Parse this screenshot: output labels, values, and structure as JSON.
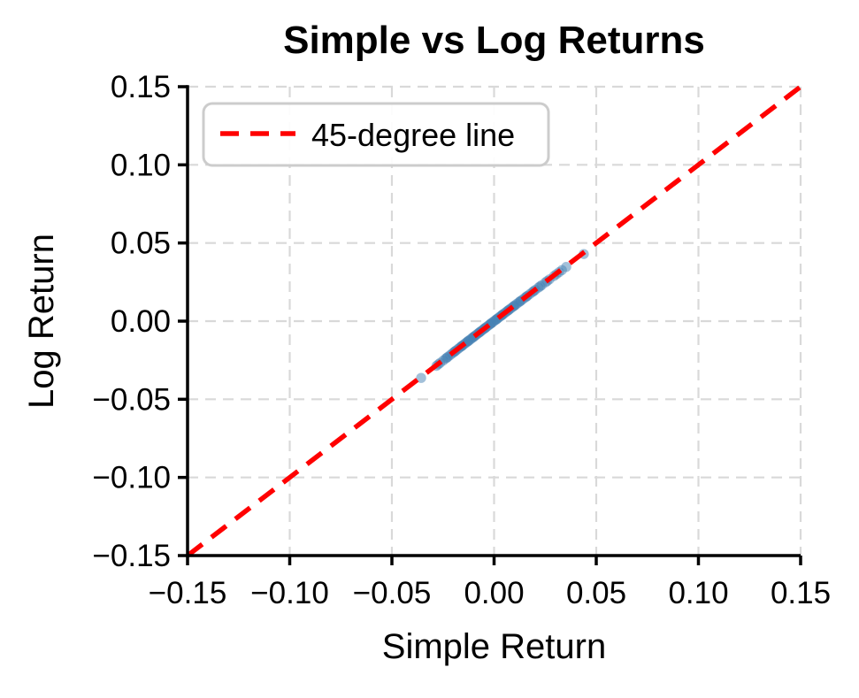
{
  "figure": {
    "background": "#ffffff",
    "text_color": "#000000"
  },
  "chart_data": {
    "type": "scatter",
    "title": "Simple vs Log Returns",
    "xlabel": "Simple Return",
    "ylabel": "Log Return",
    "xlim": [
      -0.15,
      0.15
    ],
    "ylim": [
      -0.15,
      0.15
    ],
    "xticks": [
      -0.15,
      -0.1,
      -0.05,
      0.0,
      0.05,
      0.1,
      0.15
    ],
    "yticks": [
      -0.15,
      -0.1,
      -0.05,
      0.0,
      0.05,
      0.1,
      0.15
    ],
    "xtick_labels": [
      "−0.15",
      "−0.10",
      "−0.05",
      "0.00",
      "0.05",
      "0.10",
      "0.15"
    ],
    "ytick_labels": [
      "−0.15",
      "−0.10",
      "−0.05",
      "0.00",
      "0.05",
      "0.10",
      "0.15"
    ],
    "grid": {
      "show": true,
      "color": "#d9d9d9",
      "style": "dashed"
    },
    "legend": {
      "position": "upper left",
      "entries": [
        {
          "label": "45-degree line",
          "color": "#ff0000",
          "style": "dashed"
        }
      ]
    },
    "series": {
      "scatter": {
        "color": "#4682b4",
        "alpha": 0.5,
        "marker_radius": 5.7,
        "points": [
          [
            -0.0357,
            -0.03634
          ],
          [
            -0.0282,
            -0.0286
          ],
          [
            -0.0273,
            -0.02767
          ],
          [
            -0.0264,
            -0.02675
          ],
          [
            -0.0249,
            -0.02521
          ],
          [
            -0.0237,
            -0.02398
          ],
          [
            -0.0231,
            -0.02337
          ],
          [
            -0.0226,
            -0.02286
          ],
          [
            -0.0215,
            -0.02173
          ],
          [
            -0.0205,
            -0.02071
          ],
          [
            -0.0196,
            -0.01979
          ],
          [
            -0.0192,
            -0.01938
          ],
          [
            -0.0187,
            -0.01887
          ],
          [
            -0.0178,
            -0.01796
          ],
          [
            -0.017,
            -0.01714
          ],
          [
            -0.0162,
            -0.01633
          ],
          [
            -0.0158,
            -0.01593
          ],
          [
            -0.0154,
            -0.01552
          ],
          [
            -0.0146,
            -0.01471
          ],
          [
            -0.0139,
            -0.014
          ],
          [
            -0.0131,
            -0.01319
          ],
          [
            -0.0127,
            -0.01278
          ],
          [
            -0.0124,
            -0.01248
          ],
          [
            -0.0117,
            -0.01177
          ],
          [
            -0.011,
            -0.01106
          ],
          [
            -0.0103,
            -0.01035
          ],
          [
            -0.01,
            -0.01005
          ],
          [
            -0.0096,
            -0.00965
          ],
          [
            -0.0089,
            -0.00894
          ],
          [
            -0.0082,
            -0.00823
          ],
          [
            -0.0075,
            -0.00753
          ],
          [
            -0.0071,
            -0.00713
          ],
          [
            -0.0068,
            -0.00682
          ],
          [
            -0.0061,
            -0.00612
          ],
          [
            -0.0054,
            -0.00541
          ],
          [
            -0.0047,
            -0.00471
          ],
          [
            -0.0044,
            -0.00441
          ],
          [
            -0.004,
            -0.00401
          ],
          [
            -0.0033,
            -0.00331
          ],
          [
            -0.0026,
            -0.0026
          ],
          [
            -0.0019,
            -0.0019
          ],
          [
            -0.0016,
            -0.0016
          ],
          [
            -0.0012,
            -0.0012
          ],
          [
            -0.0005,
            -0.0005
          ],
          [
            0.0002,
            0.0002
          ],
          [
            0.0009,
            0.0009
          ],
          [
            0.0012,
            0.0012
          ],
          [
            0.0016,
            0.0016
          ],
          [
            0.0023,
            0.0023
          ],
          [
            0.003,
            0.003
          ],
          [
            0.0037,
            0.00369
          ],
          [
            0.004,
            0.00399
          ],
          [
            0.0044,
            0.00439
          ],
          [
            0.0052,
            0.00519
          ],
          [
            0.006,
            0.00598
          ],
          [
            0.0068,
            0.00678
          ],
          [
            0.0069,
            0.00688
          ],
          [
            0.0076,
            0.00757
          ],
          [
            0.0084,
            0.00836
          ],
          [
            0.0093,
            0.00926
          ],
          [
            0.0098,
            0.00975
          ],
          [
            0.0102,
            0.01015
          ],
          [
            0.0111,
            0.01104
          ],
          [
            0.0121,
            0.01203
          ],
          [
            0.0128,
            0.01272
          ],
          [
            0.0131,
            0.01301
          ],
          [
            0.0141,
            0.014
          ],
          [
            0.0152,
            0.01508
          ],
          [
            0.0159,
            0.01577
          ],
          [
            0.0163,
            0.01617
          ],
          [
            0.0175,
            0.01735
          ],
          [
            0.0188,
            0.01862
          ],
          [
            0.0194,
            0.01921
          ],
          [
            0.0202,
            0.02
          ],
          [
            0.0217,
            0.02146
          ],
          [
            0.0225,
            0.02225
          ],
          [
            0.0233,
            0.02303
          ],
          [
            0.0251,
            0.02479
          ],
          [
            0.026,
            0.02566
          ],
          [
            0.0271,
            0.02673
          ],
          [
            0.0293,
            0.02887
          ],
          [
            0.0305,
            0.03003
          ],
          [
            0.0318,
            0.03129
          ],
          [
            0.0332,
            0.03265
          ],
          [
            0.0353,
            0.03468
          ],
          [
            0.0439,
            0.04294
          ]
        ]
      },
      "line": {
        "color": "#ff0000",
        "width": 5.5,
        "dash": [
          21,
          13
        ],
        "points": [
          [
            -0.15,
            -0.15
          ],
          [
            0.15,
            0.15
          ]
        ]
      }
    }
  }
}
